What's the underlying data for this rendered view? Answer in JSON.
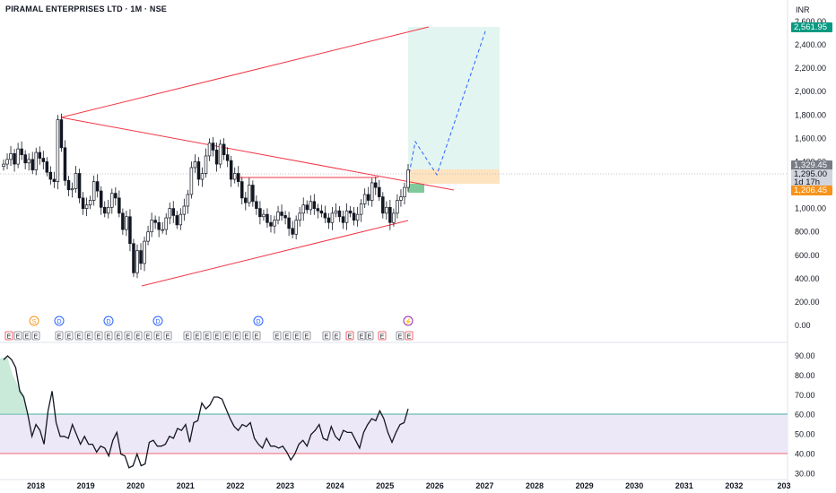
{
  "header": {
    "title": "PIRAMAL ENTERPRISES LTD · 1M · NSE"
  },
  "price_axis": {
    "currency": "INR",
    "ticks": [
      "2,600.00",
      "2,400.00",
      "2,200.00",
      "2,000.00",
      "1,800.00",
      "1,600.00",
      "1,400.00",
      "1,200.00",
      "1,000.00",
      "800.00",
      "600.00",
      "400.00",
      "200.00",
      "0.00"
    ]
  },
  "price_labels": {
    "target": "2,561.95",
    "last": "1,329.45",
    "pre": "1,295.00",
    "countdown": "1d 17h",
    "stop": "1,206.45"
  },
  "rsi_axis": {
    "ticks": [
      "90.00",
      "80.00",
      "70.00",
      "60.00",
      "50.00",
      "40.00",
      "30.00"
    ]
  },
  "time_axis": {
    "ticks": [
      "2018",
      "2019",
      "2020",
      "2021",
      "2022",
      "2023",
      "2024",
      "2025",
      "2026",
      "2027",
      "2028",
      "2029",
      "2030",
      "2031",
      "2032",
      "203"
    ]
  },
  "events": {
    "top_markers": [
      "S",
      "D",
      "D",
      "D",
      "D",
      "⚡"
    ],
    "earnings_label": "E"
  },
  "colors": {
    "up": "#131722",
    "down": "#131722",
    "trendline": "#f23645",
    "projection": "#2962ff",
    "rsi_band": "#ede8f7",
    "target_zone": "#e3f5f0",
    "entry_zone": "#fde3bf",
    "stop_zone": "#7fc99b",
    "target_badge": "#089981",
    "stop_badge": "#f7931a",
    "last_badge": "#787b86"
  },
  "chart_data": {
    "type": "candlestick",
    "symbol": "PIRAMAL ENTERPRISES LTD",
    "interval": "1M",
    "exchange": "NSE",
    "y_range": [
      0,
      2650
    ],
    "rsi_range": [
      28,
      95
    ],
    "rsi_levels": [
      40,
      60
    ],
    "closes": [
      1380,
      1420,
      1470,
      1380,
      1510,
      1460,
      1390,
      1420,
      1330,
      1480,
      1430,
      1400,
      1310,
      1250,
      1230,
      1760,
      1520,
      1240,
      1160,
      1170,
      1300,
      1090,
      1000,
      1030,
      1070,
      1230,
      1150,
      1010,
      960,
      1010,
      1130,
      1090,
      960,
      820,
      930,
      700,
      450,
      640,
      530,
      720,
      800,
      900,
      880,
      820,
      820,
      920,
      1000,
      940,
      860,
      950,
      1020,
      1120,
      1350,
      1400,
      1250,
      1300,
      1450,
      1560,
      1500,
      1380,
      1550,
      1460,
      1410,
      1250,
      1300,
      1230,
      1090,
      1050,
      1200,
      1060,
      1000,
      930,
      950,
      880,
      850,
      900,
      970,
      940,
      920,
      830,
      780,
      900,
      960,
      1030,
      990,
      1060,
      1000,
      980,
      960,
      920,
      880,
      960,
      980,
      930,
      880,
      980,
      960,
      900,
      950,
      1040,
      1120,
      1070,
      1220,
      1180,
      1100,
      960,
      1010,
      880,
      960,
      1070,
      1100,
      1180,
      1329
    ]
  }
}
